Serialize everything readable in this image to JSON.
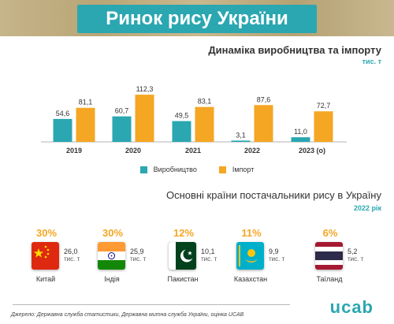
{
  "header": {
    "title": "Ринок рису України"
  },
  "chart_data": {
    "type": "bar",
    "title": "Динаміка виробництва та імпорту",
    "units": "тис. т",
    "categories": [
      "2019",
      "2020",
      "2021",
      "2022",
      "2023 (о)"
    ],
    "series": [
      {
        "name": "Виробництво",
        "values": [
          54.6,
          60.7,
          49.5,
          3.1,
          11.0
        ],
        "labels": [
          "54,6",
          "60,7",
          "49,5",
          "3,1",
          "11,0"
        ]
      },
      {
        "name": "Імпорт",
        "values": [
          81.1,
          112.3,
          83.1,
          87.6,
          72.7
        ],
        "labels": [
          "81,1",
          "112,3",
          "83,1",
          "87,6",
          "72,7"
        ]
      }
    ],
    "colors": {
      "production": "#2aa7b1",
      "import": "#f5a623"
    },
    "ylim": [
      0,
      120
    ],
    "grid": false,
    "legend_position": "bottom"
  },
  "suppliers": {
    "title": "Основні країни постачальники рису в Україну",
    "year": "2022 рік",
    "unit": "тис. т",
    "items": [
      {
        "name": "Китай",
        "percent": "30%",
        "amount": "26,0",
        "flag": "china-flag-icon"
      },
      {
        "name": "Індія",
        "percent": "30%",
        "amount": "25,9",
        "flag": "india-flag-icon"
      },
      {
        "name": "Пакистан",
        "percent": "12%",
        "amount": "10,1",
        "flag": "pakistan-flag-icon"
      },
      {
        "name": "Казахстан",
        "percent": "11%",
        "amount": "9,9",
        "flag": "kazakhstan-flag-icon"
      },
      {
        "name": "Таїланд",
        "percent": "6%",
        "amount": "5,2",
        "flag": "thailand-flag-icon"
      }
    ]
  },
  "footer": {
    "source": "Джерело: Державна служба статистики, Державна митна служба України, оцінка UCAB",
    "logo": "ucab"
  }
}
